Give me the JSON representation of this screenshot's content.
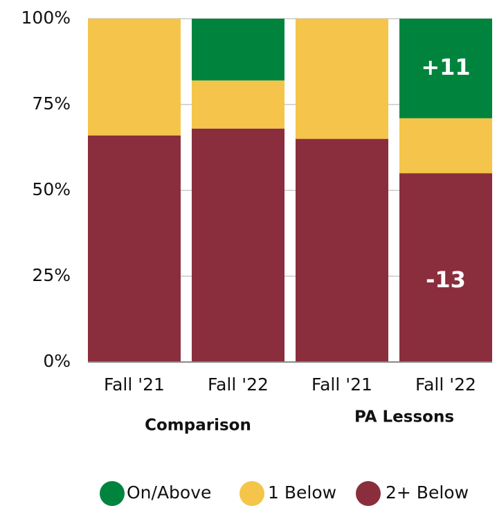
{
  "chart_data": {
    "type": "stacked_bar",
    "categories": [
      "Fall '21",
      "Fall '22",
      "Fall '21",
      "Fall '22"
    ],
    "group_labels": [
      "Comparison",
      "PA Lessons"
    ],
    "series": [
      {
        "name": "2+ Below",
        "color": "#8a2e3e",
        "values": [
          66,
          68,
          65,
          55
        ]
      },
      {
        "name": "1 Below",
        "color": "#f4c54a",
        "values": [
          34,
          14,
          35,
          16
        ]
      },
      {
        "name": "On/Above",
        "color": "#00843d",
        "values": [
          0,
          18,
          0,
          29
        ]
      }
    ],
    "legend_order": [
      "On/Above",
      "1 Below",
      "2+ Below"
    ],
    "annotations": [
      {
        "text": "+11"
      },
      {
        "text": "-13"
      }
    ],
    "ylim": [
      0,
      100
    ],
    "yticks": [
      {
        "value": 0,
        "label": "0%"
      },
      {
        "value": 25,
        "label": "25%"
      },
      {
        "value": 50,
        "label": "50%"
      },
      {
        "value": 75,
        "label": "75%"
      },
      {
        "value": 100,
        "label": "100%"
      }
    ],
    "grid": true,
    "legend": "bottom"
  }
}
